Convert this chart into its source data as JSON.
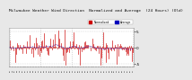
{
  "title": "Milwaukee Weather Wind Direction  Normalized and Average  (24 Hours) (Old)",
  "title_fontsize": 3.2,
  "bg_color": "#e8e8e8",
  "plot_bg_color": "#ffffff",
  "ylim": [
    -6,
    6
  ],
  "yticks": [
    -5,
    0,
    5
  ],
  "ytick_labels": [
    "-5",
    "0",
    "5"
  ],
  "bar_color": "#cc0000",
  "avg_color": "#0000bb",
  "norm_color": "#dd2222",
  "grid_color": "#bbbbbb",
  "legend_labels": [
    "Normalized",
    "Average"
  ],
  "legend_colors": [
    "#cc0000",
    "#0000bb"
  ],
  "n_points": 144,
  "seed": 7
}
